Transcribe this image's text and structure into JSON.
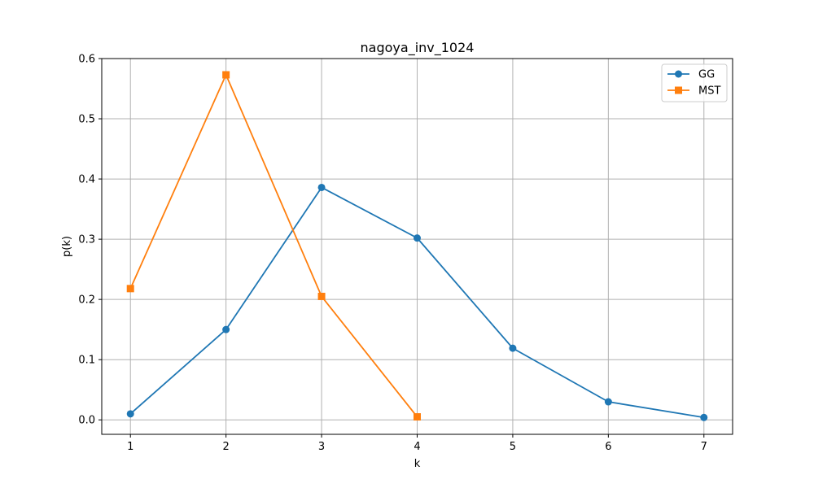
{
  "chart_data": {
    "type": "line",
    "title": "nagoya_inv_1024",
    "xlabel": "k",
    "ylabel": "p(k)",
    "xlim": [
      0.7,
      7.3
    ],
    "ylim": [
      -0.024,
      0.6
    ],
    "xticks": [
      1,
      2,
      3,
      4,
      5,
      6,
      7
    ],
    "yticks": [
      0.0,
      0.1,
      0.2,
      0.3,
      0.4,
      0.5,
      0.6
    ],
    "ytick_labels": [
      "0.0",
      "0.1",
      "0.2",
      "0.3",
      "0.4",
      "0.5",
      "0.6"
    ],
    "grid": true,
    "legend_position": "top-right",
    "series": [
      {
        "name": "GG",
        "color": "#1f77b4",
        "marker": "circle",
        "x": [
          1,
          2,
          3,
          4,
          5,
          6,
          7
        ],
        "y": [
          0.01,
          0.15,
          0.386,
          0.302,
          0.119,
          0.03,
          0.004
        ]
      },
      {
        "name": "MST",
        "color": "#ff7f0e",
        "marker": "square",
        "x": [
          1,
          2,
          3,
          4
        ],
        "y": [
          0.218,
          0.573,
          0.205,
          0.005
        ]
      }
    ]
  }
}
